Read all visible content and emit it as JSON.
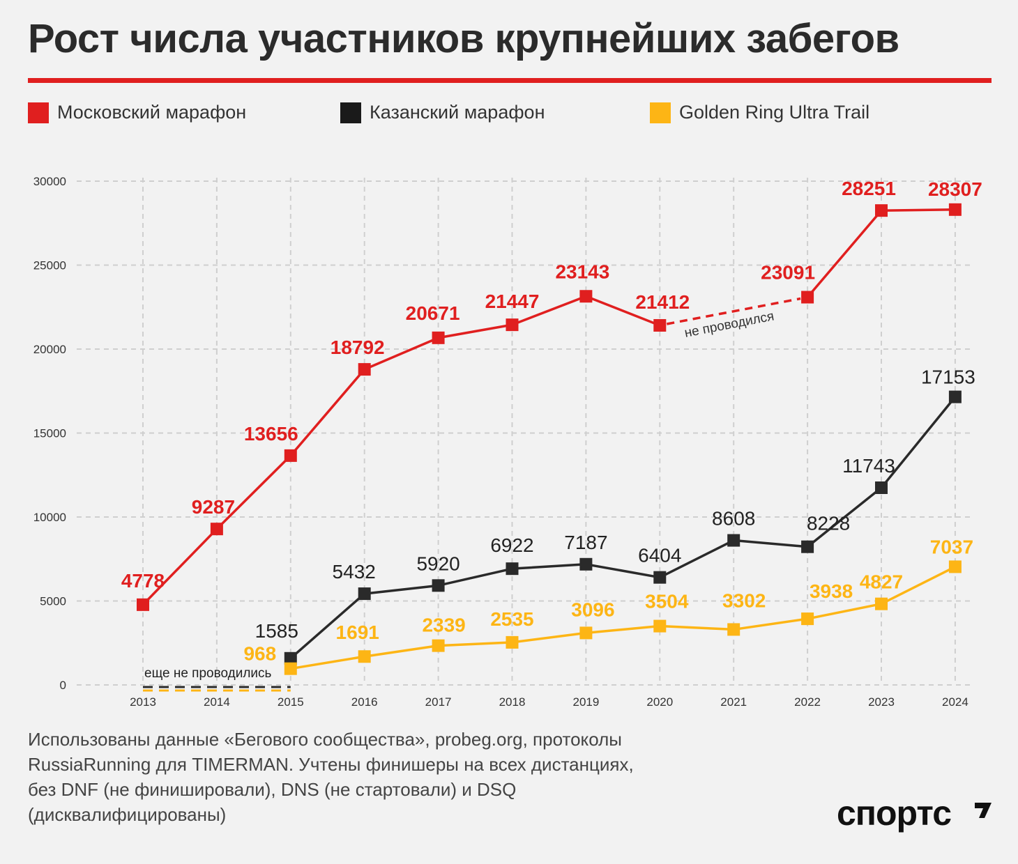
{
  "title": "Рост числа участников крупнейших забегов",
  "colors": {
    "moscow": "#e01f1f",
    "kazan": "#2a2a2a",
    "golden": "#fdb515",
    "grid": "#cfcfcf",
    "rule": "#e01f1f"
  },
  "legend": [
    {
      "label": "Московский марафон",
      "color": "#e01f1f"
    },
    {
      "label": "Казанский марафон",
      "color": "#1a1a1a"
    },
    {
      "label": "Golden Ring Ultra Trail",
      "color": "#fdb515"
    }
  ],
  "chart_data": {
    "type": "line",
    "categories": [
      "2013",
      "2014",
      "2015",
      "2016",
      "2017",
      "2018",
      "2019",
      "2020",
      "2021",
      "2022",
      "2023",
      "2024"
    ],
    "ylim": [
      0,
      30000
    ],
    "yticks": [
      0,
      5000,
      10000,
      15000,
      20000,
      25000,
      30000
    ],
    "grid": true,
    "series": [
      {
        "name": "Московский марафон",
        "values": [
          4778,
          9287,
          13656,
          18792,
          20671,
          21447,
          23143,
          21412,
          null,
          23091,
          28251,
          28307
        ]
      },
      {
        "name": "Казанский марафон",
        "values": [
          null,
          null,
          1585,
          5432,
          5920,
          6922,
          7187,
          6404,
          8608,
          8228,
          11743,
          17153
        ]
      },
      {
        "name": "Golden Ring Ultra Trail",
        "values": [
          null,
          null,
          968,
          1691,
          2339,
          2535,
          3096,
          3504,
          3302,
          3938,
          4827,
          7037
        ]
      }
    ],
    "annotations": [
      {
        "text": "не проводился",
        "series": "Московский марафон",
        "category": "2021"
      },
      {
        "text": "еще не проводились",
        "categories": [
          "2013",
          "2014"
        ]
      }
    ]
  },
  "footnote": [
    "Использованы данные «Бегового сообщества», probeg.org, протоколы",
    "RussiaRunning для TIMERMAN. Учтены финишеры на всех дистанциях,",
    "без DNF (не финишировали), DNS (не стартовали) и DSQ",
    "(дисквалифицированы)"
  ],
  "logo": "спортс"
}
